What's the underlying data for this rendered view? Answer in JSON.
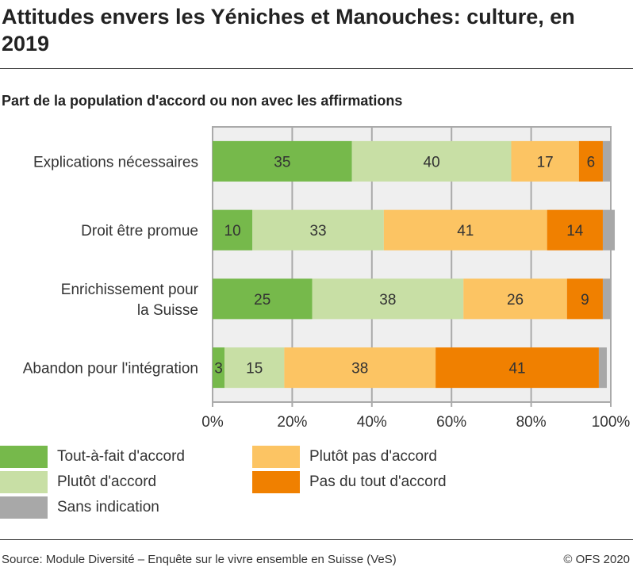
{
  "title": "Attitudes envers les Yéniches et Manouches: culture, en 2019",
  "subtitle": "Part de la population d'accord ou non avec les affirmations",
  "source": "Source: Module Diversité – Enquête sur le vivre ensemble en Suisse (VeS)",
  "copyright": "© OFS 2020",
  "chart_data": {
    "type": "bar",
    "orientation": "horizontal",
    "stacked": true,
    "categories": [
      "Explications nécessaires",
      "Droit être promue",
      "Enrichissement pour la Suisse",
      "Abandon pour l'intégration"
    ],
    "series": [
      {
        "name": "Tout-à-fait d'accord",
        "color": "#76b94b",
        "values": [
          35,
          10,
          25,
          3
        ]
      },
      {
        "name": "Plutôt d'accord",
        "color": "#c8dfa5",
        "values": [
          40,
          33,
          38,
          15
        ]
      },
      {
        "name": "Plutôt pas d'accord",
        "color": "#fcc463",
        "values": [
          17,
          41,
          26,
          38
        ]
      },
      {
        "name": "Pas du tout d'accord",
        "color": "#f08000",
        "values": [
          6,
          14,
          9,
          41
        ]
      },
      {
        "name": "Sans indication",
        "color": "#a8a8a8",
        "values": [
          2,
          3,
          2,
          2
        ]
      }
    ],
    "xticks": [
      "0%",
      "20%",
      "40%",
      "60%",
      "80%",
      "100%"
    ],
    "xlim": [
      0,
      100
    ],
    "grid": true
  }
}
